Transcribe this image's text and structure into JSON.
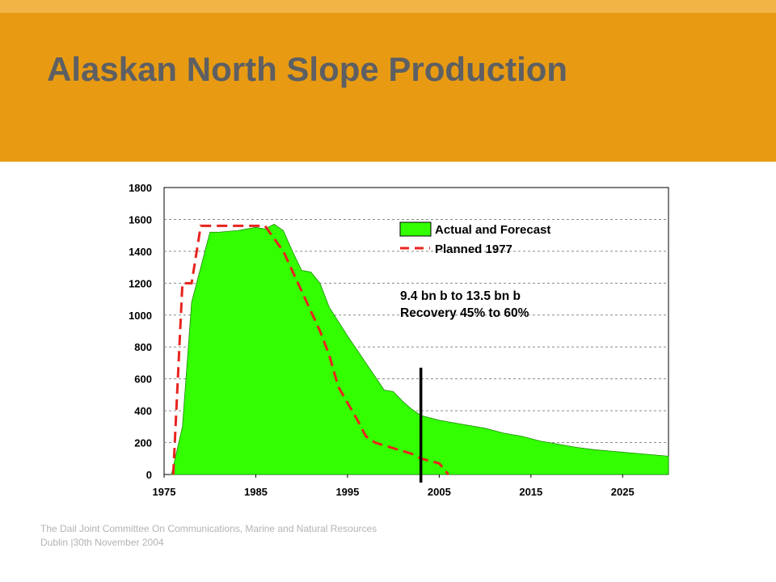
{
  "slide": {
    "title": "Alaskan North Slope Production",
    "header_color": "#e89b12",
    "strip_color": "#f2b545",
    "title_color": "#5d5f63"
  },
  "footer": {
    "line1": "The Dail Joint Committee On Communications, Marine and Natural Resources",
    "line2": "Dublin |30th November 2004"
  },
  "chart_data": {
    "type": "area",
    "title": "",
    "xlabel": "",
    "ylabel": "",
    "xlim": [
      1975,
      2030
    ],
    "ylim": [
      0,
      1800
    ],
    "x_ticks": [
      "1975",
      "1985",
      "1995",
      "2005",
      "2015",
      "2025"
    ],
    "y_ticks": [
      "0",
      "200",
      "400",
      "600",
      "800",
      "1000",
      "1200",
      "1400",
      "1600",
      "1800"
    ],
    "grid": "horizontal dashed",
    "legend_position": "top-right",
    "series": [
      {
        "name": "Actual and Forecast",
        "style": "filled-area",
        "color": "#33ff00",
        "x": [
          1975.8,
          1977,
          1978,
          1979,
          1980,
          1981,
          1983,
          1985,
          1986,
          1987,
          1988,
          1989,
          1990,
          1991,
          1992,
          1993,
          1995,
          1997,
          1999,
          2000,
          2001,
          2002,
          2003,
          2005,
          2007,
          2010,
          2012,
          2014,
          2016,
          2018,
          2020,
          2022,
          2024,
          2026,
          2028,
          2030
        ],
        "y": [
          0,
          300,
          1080,
          1300,
          1520,
          1520,
          1530,
          1550,
          1540,
          1570,
          1530,
          1400,
          1280,
          1270,
          1200,
          1050,
          870,
          700,
          530,
          520,
          460,
          410,
          370,
          340,
          320,
          290,
          260,
          240,
          210,
          190,
          170,
          155,
          145,
          135,
          125,
          115
        ]
      },
      {
        "name": "Planned 1977",
        "style": "dashed-line",
        "color": "#e8231e",
        "x": [
          1976,
          1977,
          1978,
          1979,
          1985,
          1986,
          1987,
          1988,
          1990,
          1992,
          1993,
          1994,
          1996,
          1997,
          1998,
          2002,
          2003,
          2005,
          2006
        ],
        "y": [
          0,
          1200,
          1200,
          1560,
          1560,
          1560,
          1480,
          1400,
          1150,
          900,
          750,
          550,
          350,
          240,
          200,
          130,
          100,
          70,
          0
        ]
      }
    ],
    "marker_line": {
      "x": 2003,
      "y_top": 670,
      "color": "#000000"
    },
    "annotations": [
      "9.4 bn b to 13.5 bn b",
      "Recovery 45% to 60%"
    ]
  }
}
